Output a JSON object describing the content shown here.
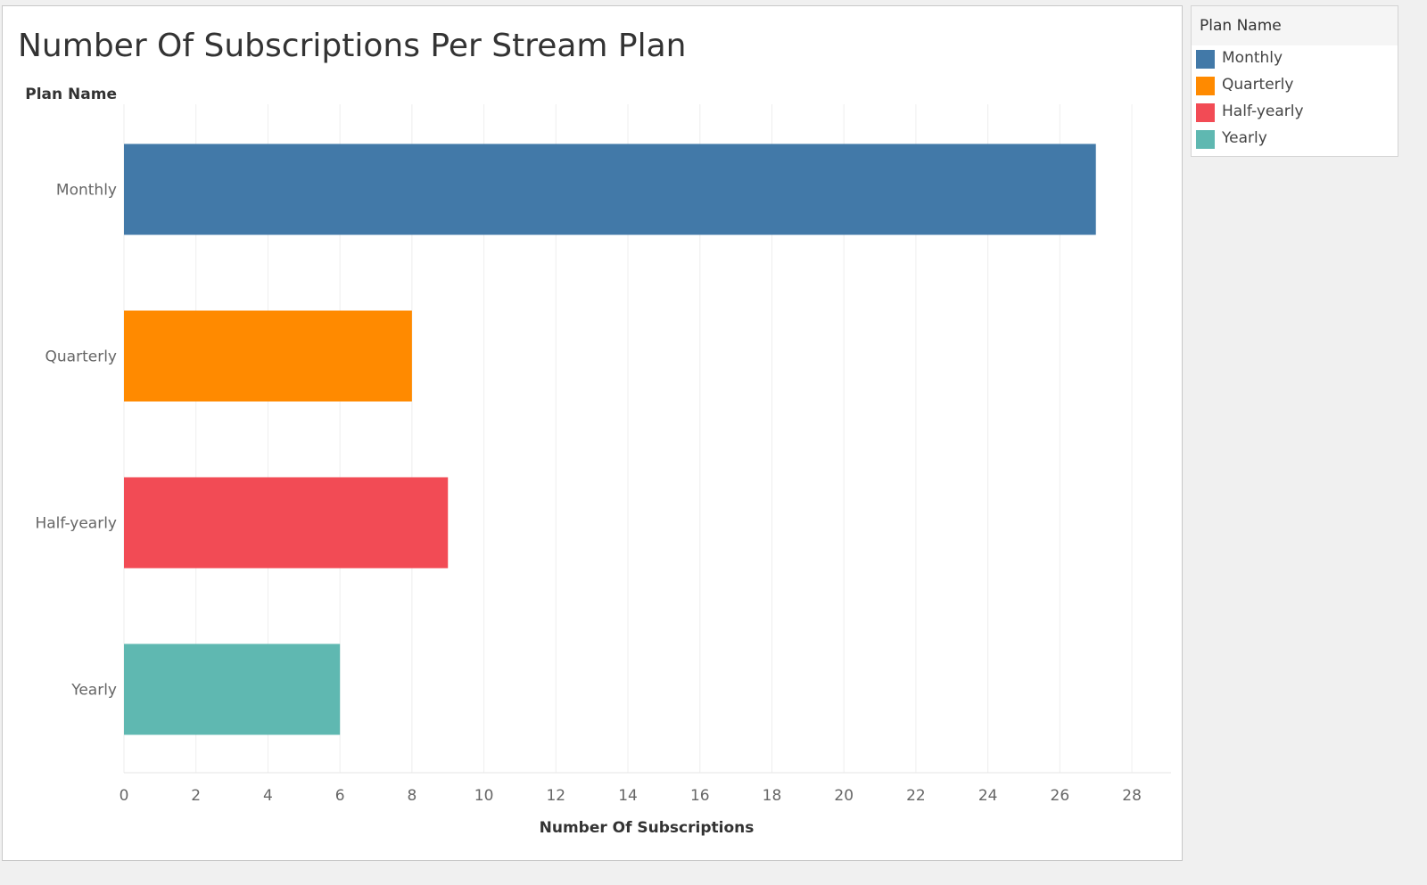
{
  "chart_data": {
    "type": "bar",
    "orientation": "horizontal",
    "title": "Number Of Subscriptions Per Stream Plan",
    "xlabel": "Number Of Subscriptions",
    "ylabel": "Plan Name",
    "categories": [
      "Monthly",
      "Quarterly",
      "Half-yearly",
      "Yearly"
    ],
    "values": [
      27,
      8,
      9,
      6
    ],
    "xlim": [
      0,
      29
    ],
    "xticks": [
      0,
      2,
      4,
      6,
      8,
      10,
      12,
      14,
      16,
      18,
      20,
      22,
      24,
      26,
      28
    ],
    "colors": [
      "#4279A8",
      "#FF8A00",
      "#F24B55",
      "#5FB8B1"
    ],
    "grid": true,
    "legend": {
      "title": "Plan Name",
      "position": "right",
      "items": [
        "Monthly",
        "Quarterly",
        "Half-yearly",
        "Yearly"
      ]
    }
  }
}
